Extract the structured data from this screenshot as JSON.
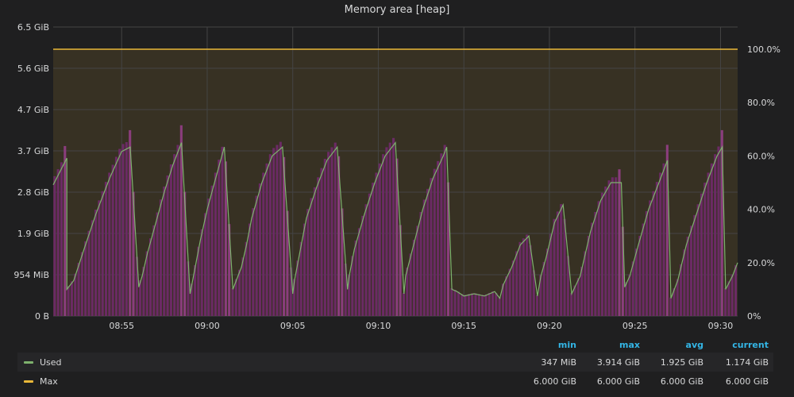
{
  "chart_data": {
    "type": "bar",
    "title": "Memory area [heap]",
    "y_unit": "GiB",
    "ylim": [
      0,
      6.5
    ],
    "y_ticks": [
      "0 B",
      "954 MiB",
      "1.9 GiB",
      "2.8 GiB",
      "3.7 GiB",
      "4.7 GiB",
      "5.6 GiB",
      "6.5 GiB"
    ],
    "y2_ticks": [
      "0%",
      "20.0%",
      "40.0%",
      "60.0%",
      "80.0%",
      "100.0%"
    ],
    "x_ticks": [
      "08:55",
      "09:00",
      "09:05",
      "09:10",
      "09:15",
      "09:20",
      "09:25",
      "09:30"
    ],
    "x_range": [
      "08:51:00",
      "09:31:00"
    ],
    "grid": true,
    "colors": {
      "used": "#7eb26d",
      "max": "#eab839",
      "bars": "#6b2a64",
      "bars_peak": "#8a3d7c"
    },
    "series": [
      {
        "name": "Used",
        "type": "line",
        "x_minutes_from_0851": [
          0,
          0.8,
          0.8,
          1.2,
          1.8,
          2.5,
          3.3,
          4.0,
          4.5,
          5.0,
          5.2,
          5.5,
          6.0,
          6.5,
          7.0,
          7.5,
          8.0,
          8.2,
          8.6,
          9.0,
          9.5,
          10.0,
          10.5,
          11.0,
          11.3,
          11.6,
          12.2,
          12.8,
          13.4,
          14.0,
          14.1,
          14.4,
          14.8,
          15.4,
          16.0,
          16.6,
          17.2,
          17.3,
          17.6,
          18.2,
          18.8,
          19.4,
          20.0,
          20.5,
          20.6,
          21.0,
          21.6,
          22.2,
          22.8,
          23.0,
          23.3,
          23.6,
          24.0,
          24.6,
          25.2,
          25.8,
          26.1,
          26.3,
          26.8,
          27.3,
          27.8,
          28.3,
          28.5,
          28.8,
          29.3,
          29.8,
          30.3,
          30.8,
          31.1,
          31.4,
          32.0,
          32.6,
          33.2,
          33.4,
          33.7,
          34.2,
          34.8,
          35.4,
          35.9,
          36.1,
          36.5,
          37.0,
          37.6,
          38.2,
          38.8,
          39.1,
          39.3,
          39.7,
          40.0
        ],
        "values_gib": [
          2.95,
          3.55,
          0.6,
          0.8,
          1.5,
          2.3,
          3.1,
          3.7,
          3.8,
          0.65,
          0.9,
          1.4,
          2.1,
          2.8,
          3.4,
          3.9,
          0.5,
          0.9,
          1.7,
          2.4,
          3.1,
          3.8,
          0.6,
          1.1,
          1.6,
          2.2,
          3.0,
          3.6,
          3.8,
          0.5,
          0.8,
          1.4,
          2.2,
          2.9,
          3.5,
          3.8,
          0.6,
          0.9,
          1.5,
          2.3,
          3.0,
          3.6,
          3.9,
          0.5,
          0.9,
          1.5,
          2.4,
          3.1,
          3.6,
          3.8,
          0.6,
          0.55,
          0.45,
          0.5,
          0.45,
          0.55,
          0.4,
          0.7,
          1.1,
          1.6,
          1.8,
          0.45,
          0.9,
          1.3,
          2.1,
          2.5,
          0.5,
          0.9,
          1.4,
          1.9,
          2.6,
          3.0,
          3.0,
          0.65,
          0.9,
          1.6,
          2.4,
          3.0,
          3.5,
          0.4,
          0.8,
          1.6,
          2.3,
          3.0,
          3.6,
          3.8,
          0.6,
          0.9,
          1.2
        ]
      },
      {
        "name": "Max",
        "type": "line",
        "values_gib": [
          6.0,
          6.0
        ]
      }
    ]
  },
  "legend": {
    "headers": {
      "min": "min",
      "max": "max",
      "avg": "avg",
      "current": "current"
    },
    "rows": [
      {
        "name": "Used",
        "color": "#7eb26d",
        "min": "347 MiB",
        "max": "3.914 GiB",
        "avg": "1.925 GiB",
        "current": "1.174 GiB"
      },
      {
        "name": "Max",
        "color": "#eab839",
        "min": "6.000 GiB",
        "max": "6.000 GiB",
        "avg": "6.000 GiB",
        "current": "6.000 GiB"
      }
    ]
  }
}
